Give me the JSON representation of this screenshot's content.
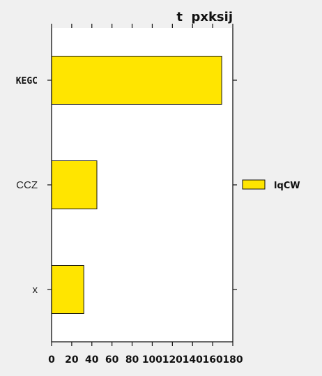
{
  "chart_data": {
    "type": "bar",
    "orientation": "horizontal",
    "title": "t  pxksij",
    "categories": [
      "KEGC",
      "CCZ",
      "x"
    ],
    "series": [
      {
        "name": "lqCW",
        "values": [
          169,
          45,
          32
        ],
        "color": "#FFE500"
      }
    ],
    "xlim": [
      0,
      180
    ],
    "xticks": [
      "0",
      "20",
      "40",
      "60",
      "80",
      "100",
      "120",
      "140",
      "160",
      "180"
    ],
    "grid": false,
    "legend_position": "right"
  }
}
